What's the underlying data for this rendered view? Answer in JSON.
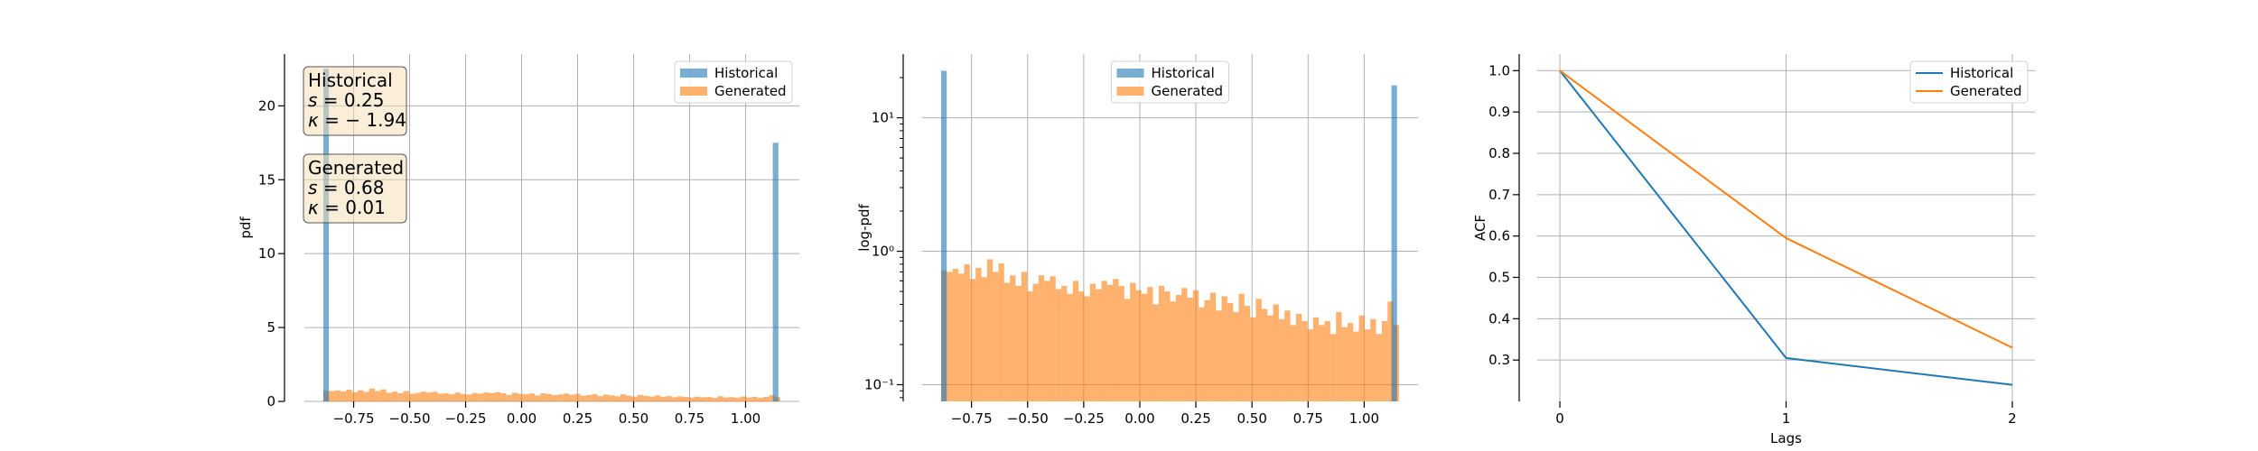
{
  "colors": {
    "historical": "#1f77b4",
    "generated": "#ff7f0e",
    "grid": "#b0b0b0",
    "statsBoxFill": "#f5deb3"
  },
  "chart_data": [
    {
      "type": "histogram",
      "xlabel": "",
      "ylabel": "pdf",
      "xlim": [
        -0.97,
        1.24
      ],
      "ylim": [
        0,
        23.5
      ],
      "xticks": [
        -0.75,
        -0.5,
        -0.25,
        0.0,
        0.25,
        0.5,
        0.75,
        1.0
      ],
      "xtick_labels": [
        "−0.75",
        "−0.50",
        "−0.25",
        "0.00",
        "0.25",
        "0.50",
        "0.75",
        "1.00"
      ],
      "yticks": [
        0,
        5,
        10,
        15,
        20
      ],
      "ytick_labels": [
        "0",
        "5",
        "10",
        "15",
        "20"
      ],
      "grid": true,
      "legend": "top-right",
      "legend_entries": [
        "Historical",
        "Generated"
      ],
      "series": [
        {
          "name": "Historical",
          "bins_x": [
            -0.873,
            1.134
          ],
          "bin_width": 0.025,
          "values": [
            22.5,
            17.5
          ]
        },
        {
          "name": "Generated",
          "bin_start": -0.885,
          "bin_width": 0.0255,
          "values": [
            0.72,
            0.7,
            0.74,
            0.68,
            0.8,
            0.62,
            0.75,
            0.64,
            0.87,
            0.7,
            0.81,
            0.58,
            0.66,
            0.55,
            0.7,
            0.5,
            0.57,
            0.66,
            0.6,
            0.65,
            0.52,
            0.55,
            0.48,
            0.6,
            0.5,
            0.46,
            0.57,
            0.52,
            0.6,
            0.56,
            0.62,
            0.55,
            0.44,
            0.58,
            0.51,
            0.48,
            0.54,
            0.4,
            0.55,
            0.5,
            0.42,
            0.47,
            0.53,
            0.45,
            0.51,
            0.38,
            0.43,
            0.49,
            0.36,
            0.46,
            0.41,
            0.35,
            0.48,
            0.39,
            0.32,
            0.44,
            0.37,
            0.33,
            0.4,
            0.31,
            0.36,
            0.28,
            0.34,
            0.3,
            0.26,
            0.32,
            0.28,
            0.3,
            0.24,
            0.35,
            0.27,
            0.29,
            0.25,
            0.33,
            0.26,
            0.31,
            0.24,
            0.3,
            0.42,
            0.28
          ]
        }
      ],
      "annotations": [
        {
          "title": "Historical",
          "lines": [
            "s = 0.25",
            "κ = − 1.94"
          ],
          "s_value": "0.25",
          "k_value": "− 1.94"
        },
        {
          "title": "Generated",
          "lines": [
            "s = 0.68",
            "κ = 0.01"
          ],
          "s_value": "0.68",
          "k_value": "0.01"
        }
      ]
    },
    {
      "type": "histogram",
      "xlabel": "",
      "ylabel": "log-pdf",
      "yscale": "log",
      "xlim": [
        -0.97,
        1.24
      ],
      "ylim": [
        0.075,
        30
      ],
      "xticks": [
        -0.75,
        -0.5,
        -0.25,
        0.0,
        0.25,
        0.5,
        0.75,
        1.0
      ],
      "xtick_labels": [
        "−0.75",
        "−0.50",
        "−0.25",
        "0.00",
        "0.25",
        "0.50",
        "0.75",
        "1.00"
      ],
      "yticks": [
        0.1,
        1,
        10
      ],
      "ytick_labels": [
        "10⁻¹",
        "10⁰",
        "10¹"
      ],
      "grid": true,
      "legend": "top-center",
      "legend_entries": [
        "Historical",
        "Generated"
      ],
      "series": [
        {
          "name": "Historical",
          "bins_x": [
            -0.873,
            1.134
          ],
          "bin_width": 0.025,
          "values": [
            22.5,
            17.5
          ]
        },
        {
          "name": "Generated",
          "bin_start": -0.885,
          "bin_width": 0.0255,
          "values": [
            0.72,
            0.7,
            0.74,
            0.68,
            0.8,
            0.62,
            0.75,
            0.64,
            0.87,
            0.7,
            0.81,
            0.58,
            0.66,
            0.55,
            0.7,
            0.5,
            0.57,
            0.66,
            0.6,
            0.65,
            0.52,
            0.55,
            0.48,
            0.6,
            0.5,
            0.46,
            0.57,
            0.52,
            0.6,
            0.56,
            0.62,
            0.55,
            0.44,
            0.58,
            0.51,
            0.48,
            0.54,
            0.4,
            0.55,
            0.5,
            0.42,
            0.47,
            0.53,
            0.45,
            0.51,
            0.38,
            0.43,
            0.49,
            0.36,
            0.46,
            0.41,
            0.35,
            0.48,
            0.39,
            0.32,
            0.44,
            0.37,
            0.33,
            0.4,
            0.31,
            0.36,
            0.28,
            0.34,
            0.3,
            0.26,
            0.32,
            0.28,
            0.3,
            0.24,
            0.35,
            0.27,
            0.29,
            0.25,
            0.33,
            0.26,
            0.31,
            0.24,
            0.3,
            0.42,
            0.28
          ]
        }
      ]
    },
    {
      "type": "line",
      "xlabel": "Lags",
      "ylabel": "ACF",
      "xlim": [
        -0.1,
        2.1
      ],
      "ylim": [
        0.2,
        1.04
      ],
      "x": [
        0,
        1,
        2
      ],
      "xticks": [
        0,
        1,
        2
      ],
      "xtick_labels": [
        "0",
        "1",
        "2"
      ],
      "yticks": [
        0.3,
        0.4,
        0.5,
        0.6,
        0.7,
        0.8,
        0.9,
        1.0
      ],
      "ytick_labels": [
        "0.3",
        "0.4",
        "0.5",
        "0.6",
        "0.7",
        "0.8",
        "0.9",
        "1.0"
      ],
      "grid": true,
      "legend": "top-right",
      "legend_entries": [
        "Historical",
        "Generated"
      ],
      "series": [
        {
          "name": "Historical",
          "values": [
            1.0,
            0.305,
            0.24
          ]
        },
        {
          "name": "Generated",
          "values": [
            1.0,
            0.595,
            0.33
          ]
        }
      ]
    }
  ]
}
